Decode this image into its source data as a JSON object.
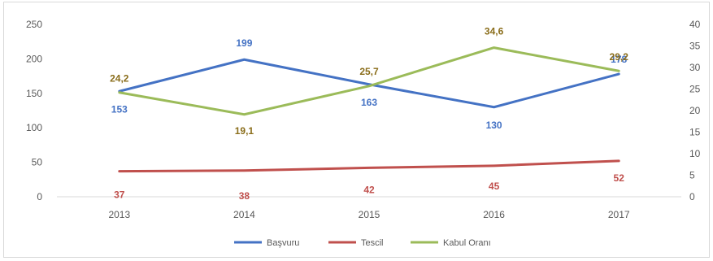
{
  "chart_data": {
    "type": "line",
    "title": "",
    "categories": [
      "2013",
      "2014",
      "2015",
      "2016",
      "2017"
    ],
    "y_left": {
      "min": 0,
      "max": 250,
      "ticks": [
        "0",
        "50",
        "100",
        "150",
        "200",
        "250"
      ]
    },
    "y_right": {
      "min": 0,
      "max": 40,
      "ticks": [
        "0",
        "5",
        "10",
        "15",
        "20",
        "25",
        "30",
        "35",
        "40"
      ]
    },
    "grid": false,
    "legend_position": "bottom",
    "series": [
      {
        "name": "Başvuru",
        "axis": "left",
        "color": "#4472c4",
        "label_color": "#4472c4",
        "values": [
          153,
          199,
          163,
          130,
          178
        ],
        "labels": [
          "153",
          "199",
          "163",
          "130",
          "178"
        ]
      },
      {
        "name": "Tescil",
        "axis": "left",
        "color": "#c0504d",
        "label_color": "#c0504d",
        "values": [
          37,
          38,
          42,
          45,
          52
        ],
        "labels": [
          "37",
          "38",
          "42",
          "45",
          "52"
        ]
      },
      {
        "name": "Kabul Oranı",
        "axis": "right",
        "color": "#9bbb59",
        "label_color": "#8a6d1a",
        "values": [
          24.2,
          19.1,
          25.7,
          34.6,
          29.2
        ],
        "labels": [
          "24,2",
          "19,1",
          "25,7",
          "34,6",
          "29,2"
        ]
      }
    ]
  }
}
